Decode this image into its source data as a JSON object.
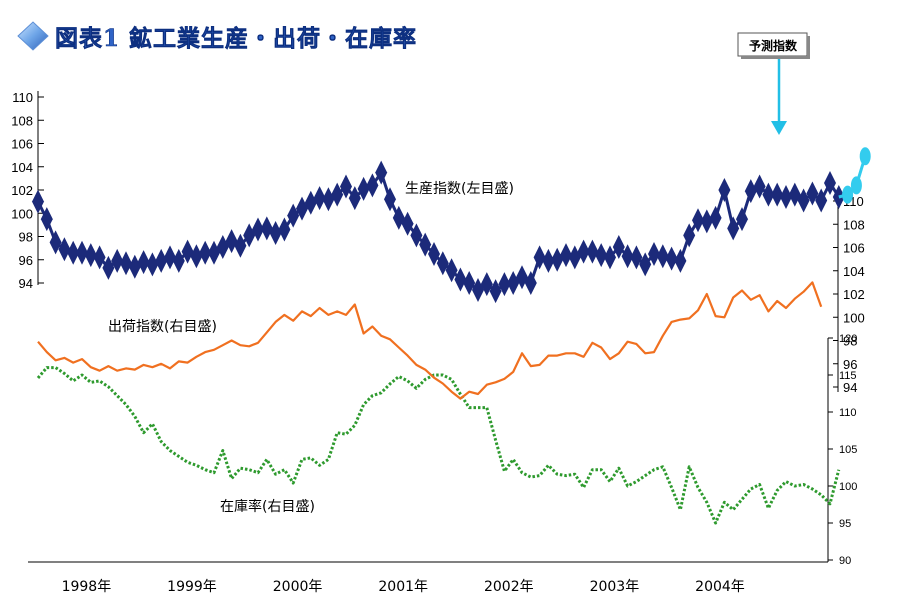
{
  "title": "図表1 鉱工業生産・出荷・在庫率",
  "prediction_label": "予測指数",
  "colors": {
    "production": "#1c2a7a",
    "forecast": "#33ccee",
    "shipment": "#f07020",
    "inventory": "#2e9a2e",
    "title": "#2f63c6"
  },
  "chart_data": [
    {
      "type": "line",
      "name": "生産指数(左目盛)",
      "label": "生産指数(左目盛)",
      "yaxis": "left",
      "ylim": [
        94,
        110
      ],
      "yticks": [
        94,
        96,
        98,
        100,
        102,
        104,
        106,
        108,
        110
      ],
      "x_start": "1998-01",
      "frequency": "monthly",
      "marker": "diamond",
      "values": [
        101.0,
        99.5,
        97.5,
        96.9,
        96.6,
        96.6,
        96.4,
        96.2,
        95.3,
        95.9,
        95.7,
        95.4,
        95.8,
        95.6,
        95.9,
        96.2,
        95.9,
        96.7,
        96.3,
        96.6,
        96.6,
        97.1,
        97.6,
        97.2,
        98.1,
        98.6,
        98.7,
        98.3,
        98.6,
        99.8,
        100.4,
        100.9,
        101.3,
        101.2,
        101.6,
        102.3,
        101.3,
        102.1,
        102.4,
        103.5,
        101.2,
        99.6,
        99.1,
        98.1,
        97.3,
        96.5,
        95.7,
        95.1,
        94.3,
        94.0,
        93.4,
        93.9,
        93.3,
        93.9,
        94.0,
        94.5,
        94.0,
        96.2,
        95.9,
        96.0,
        96.4,
        96.2,
        96.7,
        96.7,
        96.4,
        96.2,
        97.1,
        96.3,
        96.2,
        95.6,
        96.5,
        96.3,
        96.1,
        95.9,
        98.1,
        99.4,
        99.3,
        99.6,
        102.0,
        98.7,
        99.5,
        101.9,
        102.3,
        101.6,
        101.6,
        101.4,
        101.6,
        101.1,
        101.7,
        101.1,
        102.6,
        101.4
      ],
      "forecast": {
        "label": "予測指数",
        "values": [
          101.6,
          102.4,
          104.9
        ]
      }
    },
    {
      "type": "line",
      "name": "出荷指数(右目盛)",
      "label": "出荷指数(右目盛)",
      "yaxis": "right-upper",
      "ylim": [
        94,
        110
      ],
      "yticks": [
        94,
        96,
        98,
        100,
        102,
        104,
        106,
        108,
        110
      ],
      "x_start": "1998-01",
      "frequency": "monthly",
      "values": [
        97.9,
        97.0,
        96.3,
        96.5,
        96.1,
        96.4,
        95.7,
        95.4,
        95.8,
        95.4,
        95.6,
        95.5,
        95.9,
        95.7,
        96.0,
        95.6,
        96.2,
        96.1,
        96.6,
        97.0,
        97.2,
        97.6,
        98.0,
        97.6,
        97.5,
        97.8,
        98.7,
        99.6,
        100.2,
        99.7,
        100.5,
        100.1,
        100.8,
        100.2,
        100.5,
        100.2,
        101.1,
        98.6,
        99.2,
        98.4,
        98.1,
        97.4,
        96.7,
        95.9,
        95.5,
        94.8,
        94.3,
        93.6,
        93.0,
        93.6,
        93.4,
        94.2,
        94.4,
        94.7,
        95.3,
        96.9,
        95.8,
        95.9,
        96.7,
        96.7,
        96.9,
        96.9,
        96.6,
        97.8,
        97.4,
        96.4,
        96.9,
        97.9,
        97.7,
        96.9,
        97.0,
        98.4,
        99.6,
        99.8,
        99.9,
        100.6,
        102.0,
        100.1,
        100.0,
        101.7,
        102.3,
        101.5,
        101.9,
        100.5,
        101.4,
        100.8,
        101.6,
        102.2,
        103.0,
        100.9
      ]
    },
    {
      "type": "line",
      "name": "在庫率(右目盛)",
      "label": "在庫率(右目盛)",
      "yaxis": "right-lower",
      "ylim": [
        90,
        120
      ],
      "yticks": [
        90,
        95,
        100,
        105,
        110,
        115,
        120
      ],
      "x_start": "1998-01",
      "frequency": "monthly",
      "line_style": "dotted",
      "values": [
        114.6,
        116.0,
        116.0,
        115.2,
        114.2,
        115.0,
        114.0,
        114.2,
        113.4,
        112.2,
        111.0,
        109.4,
        107.2,
        108.4,
        106.0,
        104.8,
        104.0,
        103.2,
        102.8,
        102.2,
        101.8,
        104.8,
        101.0,
        102.4,
        102.2,
        101.8,
        103.6,
        101.6,
        102.2,
        100.4,
        103.6,
        103.8,
        102.8,
        103.6,
        107.2,
        107.0,
        108.2,
        111.0,
        112.2,
        112.6,
        113.8,
        114.8,
        114.2,
        113.2,
        114.4,
        115.0,
        115.0,
        114.4,
        112.4,
        110.6,
        110.6,
        110.6,
        106.2,
        102.0,
        103.6,
        101.8,
        101.2,
        101.4,
        102.8,
        101.6,
        101.4,
        101.6,
        99.8,
        102.2,
        102.2,
        100.6,
        102.4,
        100.0,
        100.6,
        101.4,
        102.2,
        102.6,
        99.8,
        96.8,
        102.6,
        99.8,
        97.8,
        95.0,
        97.8,
        96.8,
        98.2,
        99.6,
        100.2,
        97.0,
        99.4,
        100.6,
        100.0,
        100.2,
        99.6,
        98.8,
        97.6,
        102.2
      ]
    }
  ],
  "xaxis": {
    "ticks": [
      "1998年",
      "1999年",
      "2000年",
      "2001年",
      "2002年",
      "2003年",
      "2004年"
    ]
  }
}
